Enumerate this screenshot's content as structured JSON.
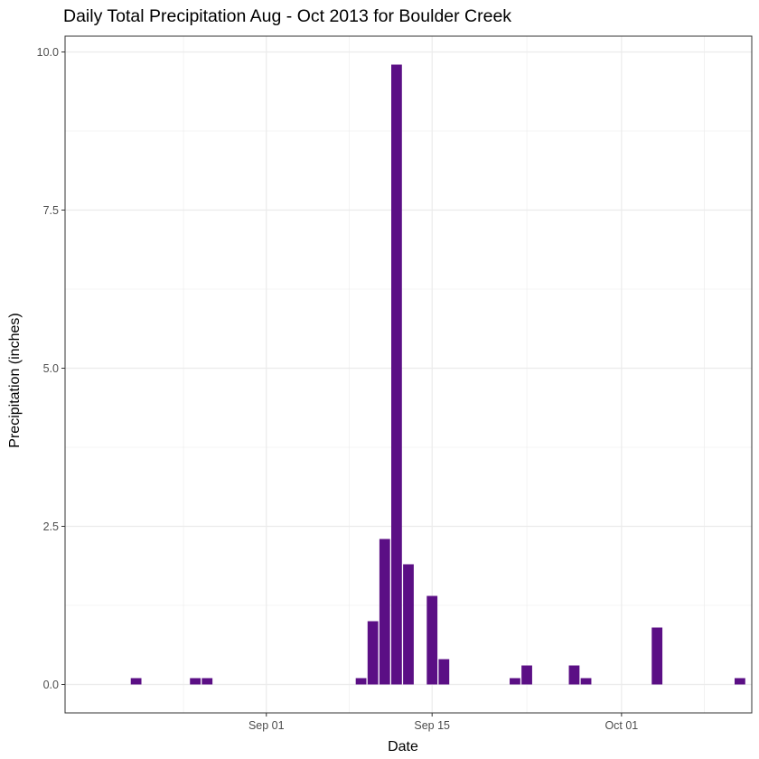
{
  "chart_data": {
    "type": "bar",
    "title": "Daily Total Precipitation Aug - Oct 2013 for Boulder Creek",
    "xlabel": "Date",
    "ylabel": "Precipitation (inches)",
    "ylim": [
      -0.45,
      10.25
    ],
    "xlim": [
      "2013-08-15",
      "2013-10-12"
    ],
    "y_ticks": [
      {
        "value": 0,
        "label": "0.0"
      },
      {
        "value": 2.5,
        "label": "2.5"
      },
      {
        "value": 5,
        "label": "5.0"
      },
      {
        "value": 7.5,
        "label": "7.5"
      },
      {
        "value": 10,
        "label": "10.0"
      }
    ],
    "x_ticks": [
      {
        "date": "2013-09-01",
        "label": "Sep 01"
      },
      {
        "date": "2013-09-15",
        "label": "Sep 15"
      },
      {
        "date": "2013-10-01",
        "label": "Oct 01"
      }
    ],
    "grid": true,
    "bar_color": "#5b0f85",
    "points": [
      {
        "date": "2013-08-21",
        "value": 0.1
      },
      {
        "date": "2013-08-26",
        "value": 0.1
      },
      {
        "date": "2013-08-27",
        "value": 0.1
      },
      {
        "date": "2013-09-09",
        "value": 0.1
      },
      {
        "date": "2013-09-10",
        "value": 1.0
      },
      {
        "date": "2013-09-11",
        "value": 2.3
      },
      {
        "date": "2013-09-12",
        "value": 9.8
      },
      {
        "date": "2013-09-13",
        "value": 1.9
      },
      {
        "date": "2013-09-15",
        "value": 1.4
      },
      {
        "date": "2013-09-16",
        "value": 0.4
      },
      {
        "date": "2013-09-22",
        "value": 0.1
      },
      {
        "date": "2013-09-23",
        "value": 0.3
      },
      {
        "date": "2013-09-27",
        "value": 0.3
      },
      {
        "date": "2013-09-28",
        "value": 0.1
      },
      {
        "date": "2013-10-04",
        "value": 0.9
      },
      {
        "date": "2013-10-11",
        "value": 0.1
      }
    ]
  }
}
